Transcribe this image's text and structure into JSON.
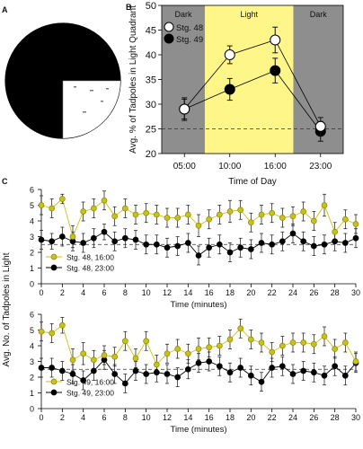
{
  "panel_labels": {
    "a": "A",
    "b": "B",
    "c": "C"
  },
  "panel_a": {
    "fill_dark": "#000000",
    "fill_light": "#ffffff"
  },
  "colors": {
    "dark_band": "#8e8e8e",
    "light_band": "#fff68a",
    "stg48_b": "#ffffff",
    "stg49_b": "#000000",
    "yellow_series": "#c9c216",
    "yellow_stroke": "#8a8510",
    "black_series": "#000000",
    "error_bar": "#111111",
    "dashed_line": "#333333"
  },
  "chart_data": [
    {
      "id": "B",
      "type": "line",
      "ylabel": "Avg. % of Tadpoles in Light Quadrant",
      "xlabel": "Time of Day",
      "categories": [
        "05:00",
        "10:00",
        "16:00",
        "23:00"
      ],
      "bands": [
        "Dark",
        "Light",
        "Dark"
      ],
      "ylim": [
        20,
        50
      ],
      "yticks": [
        20,
        25,
        30,
        35,
        40,
        45,
        50
      ],
      "reference_line": 25,
      "legend_position": "top-left",
      "series": [
        {
          "name": "Stg. 48",
          "values": [
            29,
            40,
            43,
            25.5
          ],
          "errors": [
            2,
            1.8,
            2.6,
            1.8
          ]
        },
        {
          "name": "Stg. 49",
          "values": [
            29,
            33,
            36.8,
            24.5
          ],
          "errors": [
            2.3,
            2.2,
            2.5,
            2
          ]
        }
      ]
    },
    {
      "id": "C-top",
      "type": "line",
      "xlabel": "Time (minutes)",
      "xlim": [
        0,
        30
      ],
      "xticks": [
        0,
        2,
        4,
        6,
        8,
        10,
        12,
        14,
        16,
        18,
        20,
        22,
        24,
        26,
        28,
        30
      ],
      "ylim": [
        0,
        6
      ],
      "yticks": [
        0,
        1,
        2,
        3,
        4,
        5,
        6
      ],
      "reference_line": 2.5,
      "legend_position": "bottom-left",
      "x": [
        0,
        1,
        2,
        3,
        4,
        5,
        6,
        7,
        8,
        9,
        10,
        11,
        12,
        13,
        14,
        15,
        16,
        17,
        18,
        19,
        20,
        21,
        22,
        23,
        24,
        25,
        26,
        27,
        28,
        29,
        30
      ],
      "series": [
        {
          "name": "Stg. 48, 16:00",
          "values": [
            5.0,
            4.8,
            5.4,
            3.0,
            4.6,
            4.8,
            5.3,
            4.3,
            4.8,
            4.4,
            4.5,
            4.4,
            4.2,
            4.2,
            4.4,
            3.7,
            4.1,
            4.4,
            4.6,
            4.7,
            3.9,
            4.4,
            4.5,
            4.2,
            4.3,
            4.6,
            4.0,
            5.0,
            3.3,
            4.1,
            3.8
          ],
          "errors": [
            0.6,
            0.6,
            0.3,
            0.7,
            0.6,
            0.6,
            0.6,
            0.6,
            0.6,
            0.6,
            0.6,
            0.6,
            0.6,
            0.6,
            0.6,
            0.7,
            0.6,
            0.6,
            0.7,
            0.6,
            0.6,
            0.6,
            0.6,
            0.6,
            0.6,
            0.6,
            0.6,
            0.7,
            0.6,
            0.6,
            0.6
          ]
        },
        {
          "name": "Stg. 48, 23:00",
          "values": [
            2.8,
            2.7,
            3.0,
            2.7,
            2.6,
            2.9,
            3.3,
            2.7,
            2.9,
            2.8,
            2.5,
            2.5,
            2.3,
            2.4,
            2.6,
            1.8,
            2.3,
            2.5,
            2.0,
            2.3,
            2.2,
            2.6,
            2.5,
            2.7,
            3.2,
            2.7,
            2.4,
            2.5,
            2.7,
            2.6,
            2.9
          ],
          "errors": [
            0.6,
            0.5,
            0.6,
            0.6,
            0.6,
            0.6,
            0.5,
            0.6,
            0.6,
            0.6,
            0.6,
            0.6,
            0.6,
            0.6,
            0.6,
            0.6,
            0.6,
            0.6,
            0.6,
            0.6,
            0.6,
            0.6,
            0.6,
            0.6,
            0.6,
            0.6,
            0.6,
            0.6,
            0.6,
            0.6,
            0.6
          ]
        }
      ]
    },
    {
      "id": "C-bottom",
      "type": "line",
      "xlabel": "Time (minutes)",
      "ylabel": "Avg. No. of Tadpoles in Light",
      "xlim": [
        0,
        30
      ],
      "xticks": [
        0,
        2,
        4,
        6,
        8,
        10,
        12,
        14,
        16,
        18,
        20,
        22,
        24,
        26,
        28,
        30
      ],
      "ylim": [
        0,
        6
      ],
      "yticks": [
        0,
        1,
        2,
        3,
        4,
        5,
        6
      ],
      "reference_line": 2.5,
      "legend_position": "bottom-left",
      "x": [
        0,
        1,
        2,
        3,
        4,
        5,
        6,
        7,
        8,
        9,
        10,
        11,
        12,
        13,
        14,
        15,
        16,
        17,
        18,
        19,
        20,
        21,
        22,
        23,
        24,
        25,
        26,
        27,
        28,
        29,
        30
      ],
      "series": [
        {
          "name": "Stg. 49, 16:00",
          "values": [
            4.9,
            4.8,
            5.3,
            3.1,
            3.5,
            3.1,
            3.4,
            3.3,
            4.3,
            3.2,
            4.3,
            2.8,
            3.5,
            3.8,
            3.5,
            3.8,
            3.9,
            4.0,
            4.4,
            5.1,
            4.4,
            4.2,
            3.6,
            4.0,
            4.2,
            4.2,
            4.1,
            4.6,
            3.8,
            4.2,
            3.0
          ],
          "errors": [
            0.6,
            0.6,
            0.5,
            0.7,
            0.7,
            0.6,
            0.6,
            0.6,
            0.6,
            0.6,
            0.6,
            0.6,
            0.6,
            0.6,
            0.6,
            0.7,
            0.6,
            0.6,
            0.6,
            0.6,
            0.6,
            0.6,
            0.6,
            0.6,
            0.6,
            0.6,
            0.6,
            0.6,
            0.6,
            0.6,
            0.6
          ]
        },
        {
          "name": "Stg. 49, 23:00",
          "values": [
            2.6,
            2.6,
            2.4,
            2.2,
            1.8,
            2.4,
            3.1,
            2.2,
            1.6,
            2.4,
            2.2,
            2.3,
            2.2,
            2.0,
            2.5,
            2.9,
            3.0,
            2.7,
            2.3,
            2.6,
            2.1,
            1.7,
            2.6,
            2.7,
            2.2,
            2.4,
            2.3,
            2.1,
            2.7,
            2.1,
            2.9
          ],
          "errors": [
            0.6,
            0.6,
            0.6,
            0.6,
            0.6,
            0.6,
            0.6,
            0.6,
            0.6,
            0.6,
            0.6,
            0.6,
            0.6,
            0.6,
            0.6,
            0.6,
            0.6,
            0.6,
            0.6,
            0.6,
            0.6,
            0.6,
            0.6,
            0.6,
            0.6,
            0.6,
            0.6,
            0.6,
            0.6,
            0.6,
            0.6
          ]
        }
      ]
    }
  ]
}
